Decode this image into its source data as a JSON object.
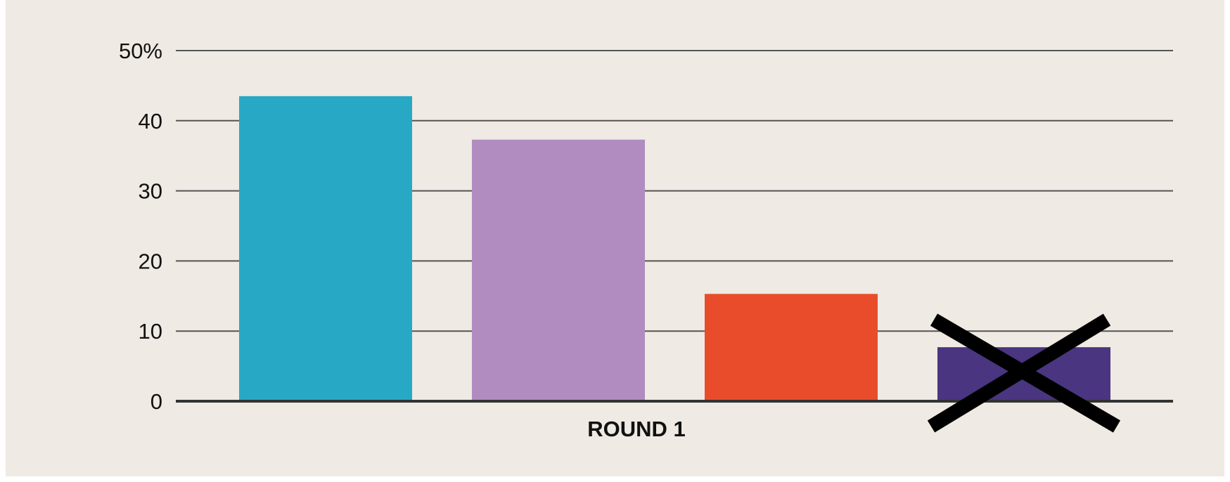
{
  "chart_data": {
    "type": "bar",
    "categories": [
      "",
      "",
      "",
      ""
    ],
    "values": [
      43.5,
      37.3,
      15.3,
      7.7
    ],
    "colors": [
      "#27a9c6",
      "#b08cc0",
      "#e94c2a",
      "#4a3580"
    ],
    "eliminated_index": 3,
    "eliminated_marker": "cross-icon",
    "xlabel": "ROUND 1",
    "ylabel": "",
    "ylim": [
      0,
      50
    ],
    "y_ticks": [
      0,
      10,
      20,
      30,
      40,
      50
    ],
    "y_tick_labels": [
      "0",
      "10",
      "20",
      "30",
      "40",
      "50%"
    ],
    "grid": true,
    "legend": "none"
  },
  "style": {
    "background": "#efeae3",
    "grid_color": "#555555",
    "baseline_color": "#333333",
    "marker_color": "#000000"
  }
}
